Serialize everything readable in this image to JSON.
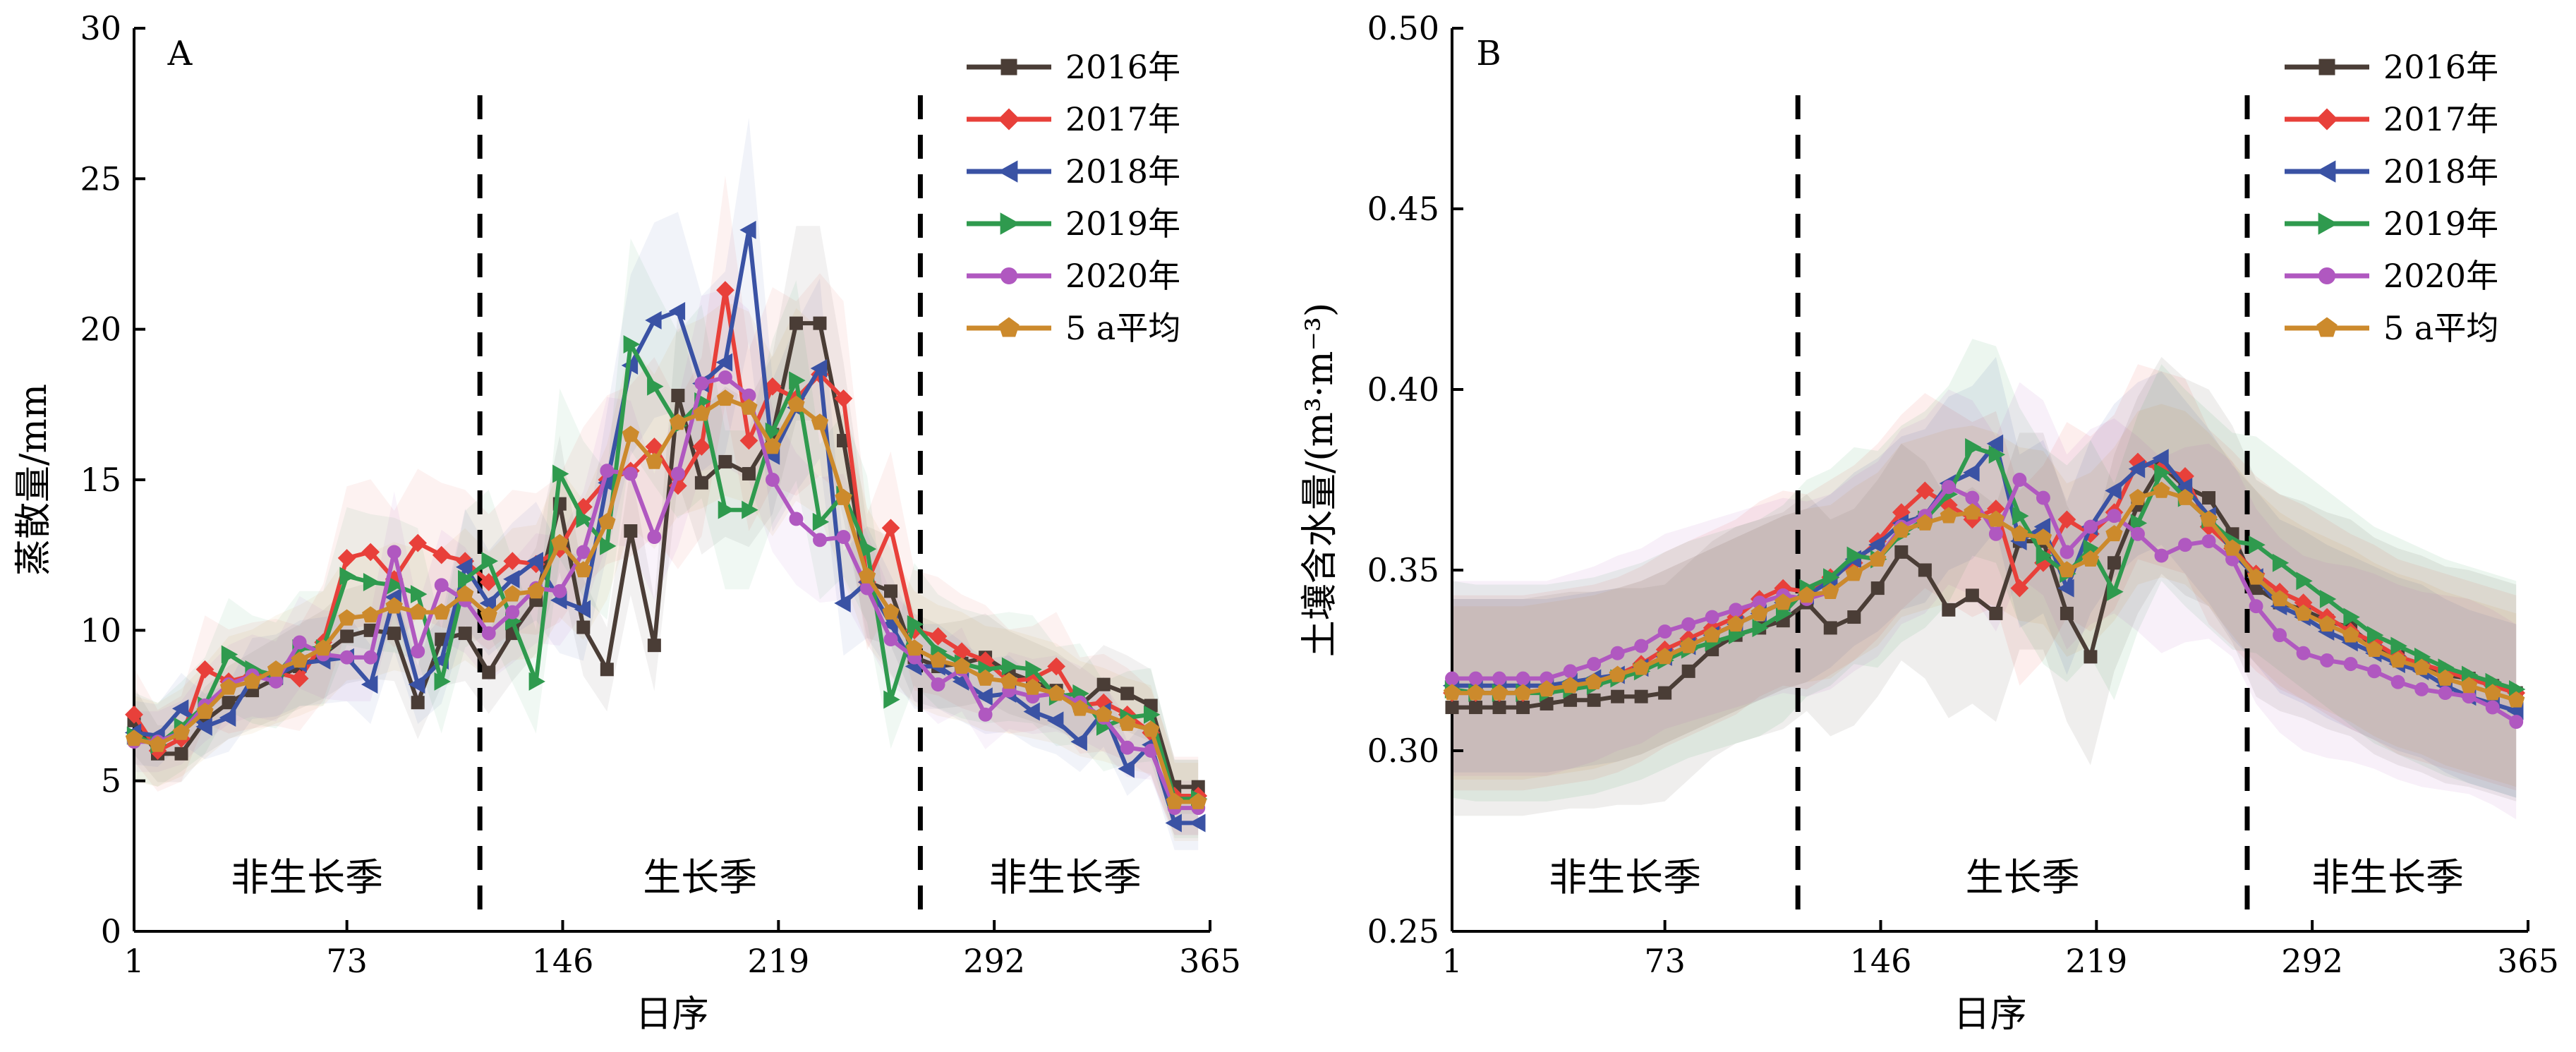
{
  "chart_data": [
    {
      "type": "line",
      "panel_label": "A",
      "ylabel": "蒸散量/mm",
      "xlabel": "日序",
      "xlim": [
        1,
        365
      ],
      "ylim": [
        0,
        30
      ],
      "x_ticks": [
        "1",
        "73",
        "146",
        "219",
        "292",
        "365"
      ],
      "y_ticks": [
        "0",
        "5",
        "10",
        "15",
        "20",
        "25",
        "30"
      ],
      "dividers_x": [
        118,
        267
      ],
      "season_labels": [
        "非生长季",
        "生长季",
        "非生长季"
      ],
      "x": [
        1,
        9,
        17,
        25,
        33,
        41,
        49,
        57,
        65,
        73,
        81,
        89,
        97,
        105,
        113,
        121,
        129,
        137,
        145,
        153,
        161,
        169,
        177,
        185,
        193,
        201,
        209,
        217,
        225,
        233,
        241,
        249,
        257,
        265,
        273,
        281,
        289,
        297,
        305,
        313,
        321,
        329,
        337,
        345,
        353,
        361
      ],
      "series": [
        {
          "name": "2016年",
          "color": "#4a3d36",
          "marker": "square",
          "values": [
            7.0,
            5.9,
            5.9,
            7.0,
            7.6,
            8.0,
            8.4,
            8.8,
            9.2,
            9.8,
            10.0,
            9.9,
            7.6,
            9.7,
            9.9,
            8.6,
            9.9,
            11.0,
            14.2,
            10.1,
            8.7,
            13.3,
            9.5,
            17.8,
            14.9,
            15.6,
            15.2,
            16.5,
            20.2,
            20.2,
            16.3,
            11.6,
            11.3,
            9.1,
            8.8,
            8.9,
            9.1,
            8.6,
            8.3,
            8.0,
            7.5,
            8.2,
            7.9,
            7.5,
            4.8,
            4.8
          ]
        },
        {
          "name": "2017年",
          "color": "#e8403a",
          "marker": "diamond",
          "values": [
            7.2,
            6.0,
            6.4,
            8.7,
            8.3,
            8.5,
            8.6,
            8.4,
            9.6,
            12.4,
            12.6,
            11.7,
            12.9,
            12.5,
            12.3,
            11.6,
            12.3,
            12.2,
            12.7,
            14.1,
            15.0,
            15.3,
            16.1,
            14.8,
            16.1,
            21.3,
            16.3,
            18.1,
            17.7,
            18.5,
            17.7,
            11.6,
            13.4,
            10.0,
            9.8,
            9.3,
            9.0,
            8.3,
            8.4,
            8.8,
            7.5,
            7.6,
            7.2,
            6.6,
            4.5,
            4.5
          ]
        },
        {
          "name": "2018年",
          "color": "#3a52a4",
          "marker": "triangle-left",
          "values": [
            6.6,
            6.5,
            7.4,
            6.8,
            7.1,
            8.4,
            8.5,
            8.9,
            9.0,
            9.1,
            8.2,
            11.1,
            8.2,
            9.0,
            12.1,
            10.9,
            11.7,
            12.3,
            11.0,
            10.7,
            14.9,
            18.8,
            20.3,
            20.6,
            18.2,
            18.9,
            23.3,
            15.8,
            17.4,
            18.7,
            10.9,
            11.6,
            10.2,
            8.8,
            8.8,
            8.3,
            7.8,
            7.9,
            7.3,
            7.0,
            6.3,
            7.3,
            5.4,
            6.2,
            3.6,
            3.6
          ]
        },
        {
          "name": "2019年",
          "color": "#2f9a4e",
          "marker": "triangle-right",
          "values": [
            6.5,
            6.2,
            6.8,
            7.5,
            9.2,
            8.7,
            8.5,
            9.4,
            9.4,
            11.8,
            11.6,
            11.5,
            11.2,
            8.3,
            11.7,
            12.3,
            10.3,
            8.3,
            15.2,
            13.7,
            12.8,
            19.5,
            18.1,
            16.8,
            17.6,
            14.0,
            14.0,
            16.6,
            18.3,
            13.6,
            14.5,
            12.7,
            7.7,
            10.2,
            9.3,
            8.9,
            8.7,
            8.8,
            8.7,
            7.8,
            7.9,
            6.8,
            7.1,
            7.2,
            4.4,
            4.4
          ]
        },
        {
          "name": "2020年",
          "color": "#b058c0",
          "marker": "circle",
          "values": [
            6.3,
            6.3,
            6.6,
            7.5,
            8.2,
            8.5,
            8.3,
            9.6,
            9.2,
            9.1,
            9.1,
            12.6,
            9.3,
            11.5,
            11.0,
            9.9,
            10.6,
            11.4,
            11.3,
            12.6,
            15.3,
            15.2,
            13.1,
            15.2,
            18.2,
            18.4,
            17.8,
            15.0,
            13.7,
            13.0,
            13.1,
            11.4,
            9.7,
            9.1,
            8.2,
            8.7,
            7.2,
            8.0,
            7.8,
            7.9,
            7.6,
            7.1,
            6.1,
            6.0,
            4.1,
            4.1
          ]
        },
        {
          "name": "5 a平均",
          "color": "#cc8a2c",
          "marker": "pentagon",
          "values": [
            6.4,
            6.2,
            6.6,
            7.3,
            8.1,
            8.3,
            8.7,
            9.0,
            9.4,
            10.4,
            10.5,
            10.8,
            10.6,
            10.6,
            11.2,
            10.5,
            11.2,
            11.3,
            12.9,
            12.0,
            13.6,
            16.5,
            15.6,
            16.9,
            17.2,
            17.7,
            17.4,
            16.1,
            17.5,
            16.9,
            14.4,
            11.8,
            10.6,
            9.4,
            9.0,
            8.8,
            8.4,
            8.3,
            8.1,
            7.9,
            7.4,
            7.2,
            6.9,
            6.7,
            4.3,
            4.3
          ]
        }
      ]
    },
    {
      "type": "line",
      "panel_label": "B",
      "ylabel": "土壤含水量/(m³·m⁻³)",
      "xlabel": "日序",
      "xlim": [
        1,
        365
      ],
      "ylim": [
        0.25,
        0.5
      ],
      "x_ticks": [
        "1",
        "73",
        "146",
        "219",
        "292",
        "365"
      ],
      "y_ticks": [
        "0.25",
        "0.30",
        "0.35",
        "0.40",
        "0.45",
        "0.50"
      ],
      "dividers_x": [
        118,
        270
      ],
      "season_labels": [
        "非生长季",
        "生长季",
        "非生长季"
      ],
      "x": [
        1,
        9,
        17,
        25,
        33,
        41,
        49,
        57,
        65,
        73,
        81,
        89,
        97,
        105,
        113,
        121,
        129,
        137,
        145,
        153,
        161,
        169,
        177,
        185,
        193,
        201,
        209,
        217,
        225,
        233,
        241,
        249,
        257,
        265,
        273,
        281,
        289,
        297,
        305,
        313,
        321,
        329,
        337,
        345,
        353,
        361
      ],
      "series": [
        {
          "name": "2016年",
          "color": "#4a3d36",
          "marker": "square",
          "values": [
            0.312,
            0.312,
            0.312,
            0.312,
            0.313,
            0.314,
            0.314,
            0.315,
            0.315,
            0.316,
            0.322,
            0.328,
            0.332,
            0.334,
            0.336,
            0.341,
            0.334,
            0.337,
            0.345,
            0.355,
            0.35,
            0.339,
            0.343,
            0.338,
            0.358,
            0.358,
            0.338,
            0.326,
            0.352,
            0.368,
            0.379,
            0.373,
            0.37,
            0.36,
            0.345,
            0.341,
            0.339,
            0.336,
            0.334,
            0.329,
            0.326,
            0.324,
            0.321,
            0.32,
            0.318,
            0.316
          ]
        },
        {
          "name": "2017年",
          "color": "#e8403a",
          "marker": "diamond",
          "values": [
            0.316,
            0.316,
            0.316,
            0.316,
            0.317,
            0.318,
            0.319,
            0.321,
            0.324,
            0.328,
            0.331,
            0.334,
            0.337,
            0.342,
            0.345,
            0.344,
            0.348,
            0.352,
            0.358,
            0.366,
            0.372,
            0.368,
            0.364,
            0.367,
            0.345,
            0.352,
            0.364,
            0.36,
            0.366,
            0.38,
            0.378,
            0.376,
            0.362,
            0.356,
            0.349,
            0.344,
            0.341,
            0.337,
            0.333,
            0.33,
            0.326,
            0.324,
            0.322,
            0.32,
            0.318,
            0.316
          ]
        },
        {
          "name": "2018年",
          "color": "#3a52a4",
          "marker": "triangle-left",
          "values": [
            0.318,
            0.318,
            0.318,
            0.318,
            0.318,
            0.319,
            0.32,
            0.321,
            0.323,
            0.326,
            0.329,
            0.332,
            0.335,
            0.338,
            0.341,
            0.343,
            0.347,
            0.353,
            0.357,
            0.363,
            0.365,
            0.374,
            0.377,
            0.385,
            0.358,
            0.362,
            0.345,
            0.362,
            0.372,
            0.378,
            0.381,
            0.373,
            0.365,
            0.355,
            0.348,
            0.34,
            0.337,
            0.333,
            0.33,
            0.327,
            0.324,
            0.322,
            0.318,
            0.315,
            0.313,
            0.311
          ]
        },
        {
          "name": "2019年",
          "color": "#2f9a4e",
          "marker": "triangle-right",
          "values": [
            0.317,
            0.316,
            0.316,
            0.316,
            0.316,
            0.317,
            0.318,
            0.32,
            0.322,
            0.325,
            0.328,
            0.33,
            0.332,
            0.334,
            0.338,
            0.345,
            0.348,
            0.354,
            0.353,
            0.36,
            0.364,
            0.371,
            0.384,
            0.382,
            0.365,
            0.354,
            0.349,
            0.356,
            0.344,
            0.363,
            0.377,
            0.37,
            0.364,
            0.358,
            0.357,
            0.352,
            0.347,
            0.342,
            0.337,
            0.332,
            0.329,
            0.326,
            0.323,
            0.321,
            0.319,
            0.317
          ]
        },
        {
          "name": "2020年",
          "color": "#b058c0",
          "marker": "circle",
          "values": [
            0.32,
            0.32,
            0.32,
            0.32,
            0.32,
            0.322,
            0.324,
            0.327,
            0.329,
            0.333,
            0.335,
            0.337,
            0.339,
            0.341,
            0.343,
            0.342,
            0.344,
            0.349,
            0.353,
            0.362,
            0.365,
            0.373,
            0.37,
            0.36,
            0.375,
            0.37,
            0.355,
            0.362,
            0.365,
            0.36,
            0.354,
            0.357,
            0.358,
            0.353,
            0.34,
            0.332,
            0.327,
            0.325,
            0.324,
            0.322,
            0.319,
            0.317,
            0.316,
            0.315,
            0.312,
            0.308
          ]
        },
        {
          "name": "5 a平均",
          "color": "#cc8a2c",
          "marker": "pentagon",
          "values": [
            0.316,
            0.316,
            0.316,
            0.316,
            0.317,
            0.318,
            0.319,
            0.321,
            0.323,
            0.326,
            0.329,
            0.332,
            0.335,
            0.338,
            0.341,
            0.343,
            0.344,
            0.349,
            0.353,
            0.361,
            0.363,
            0.365,
            0.366,
            0.364,
            0.36,
            0.359,
            0.35,
            0.353,
            0.36,
            0.37,
            0.372,
            0.37,
            0.364,
            0.356,
            0.348,
            0.342,
            0.338,
            0.335,
            0.332,
            0.328,
            0.325,
            0.323,
            0.32,
            0.318,
            0.316,
            0.314
          ]
        }
      ]
    }
  ]
}
